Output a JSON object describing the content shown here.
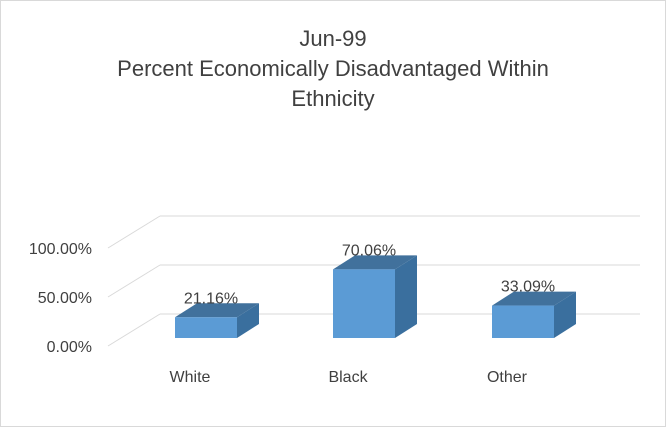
{
  "chart_data": {
    "type": "bar",
    "title_lines": [
      "Jun-99",
      "Percent Economically Disadvantaged Within",
      "Ethnicity"
    ],
    "categories": [
      "White",
      "Black",
      "Other"
    ],
    "values": [
      21.16,
      70.06,
      33.09
    ],
    "data_labels": [
      "21.16%",
      "70.06%",
      "33.09%"
    ],
    "y_ticks": [
      "0.00%",
      "50.00%",
      "100.00%"
    ],
    "y_tick_values": [
      0,
      50,
      100
    ],
    "ylim": [
      0,
      100
    ],
    "xlabel": "",
    "ylabel": "",
    "grid": true,
    "legend": "none",
    "style": "3d-column",
    "colors": {
      "bar_front": "#5b9bd5",
      "bar_side": "#3a6f9e",
      "bar_top": "#41719c",
      "grid": "#d9d9d9",
      "text": "#404040"
    }
  }
}
